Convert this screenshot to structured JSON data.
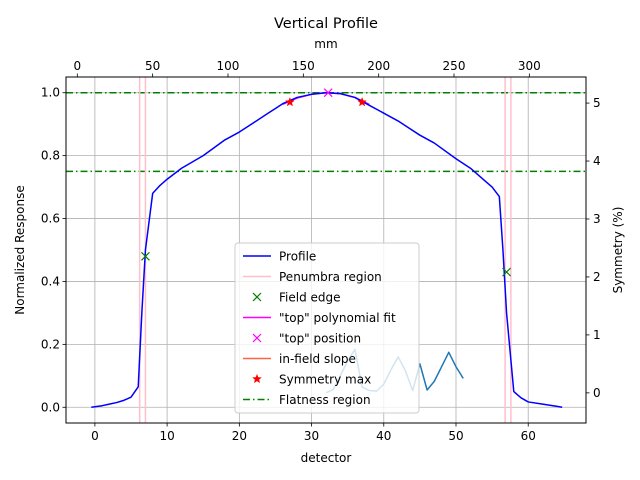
{
  "chart_data": {
    "type": "line",
    "title": "Vertical Profile",
    "xlabel": "detector",
    "ylabel": "Normalized Response",
    "x2label": "mm",
    "y2label": "Symmetry (%)",
    "xlim": [
      -4,
      68
    ],
    "ylim": [
      -0.05,
      1.05
    ],
    "x2lim": [
      -7.5,
      337.6
    ],
    "y2lim": [
      -0.52,
      5.45
    ],
    "xticks": [
      0,
      10,
      20,
      30,
      40,
      50,
      60
    ],
    "yticks": [
      0.0,
      0.2,
      0.4,
      0.6,
      0.8,
      1.0
    ],
    "x2ticks": [
      0,
      50,
      100,
      150,
      200,
      250,
      300
    ],
    "y2ticks": [
      0,
      1,
      2,
      3,
      4,
      5
    ],
    "grid": true,
    "legend_position": "lower-center",
    "colors": {
      "profile": "#0000ff",
      "penumbra": "#ffc0cb",
      "field_edge": "#008000",
      "top_fit": "#ff00ff",
      "top_position": "#ff00ff",
      "slope": "#ff6347",
      "symmetry_max": "#ff0000",
      "flatness": "#008000",
      "symmetry_curve": "#1f77b4"
    },
    "series": [
      {
        "name": "Profile",
        "kind": "line",
        "axis": "left",
        "x": [
          -0.5,
          1,
          2,
          3,
          4,
          5,
          6,
          6.5,
          7,
          8,
          9,
          10,
          12,
          15,
          18,
          20,
          22,
          24,
          25,
          26,
          28,
          30,
          32,
          34,
          36,
          38,
          40,
          42,
          43,
          45,
          47,
          50,
          52,
          54,
          55,
          56,
          56.5,
          57,
          58,
          59,
          60,
          62,
          64,
          64.7
        ],
        "y": [
          0.0,
          0.005,
          0.01,
          0.015,
          0.022,
          0.032,
          0.065,
          0.3,
          0.5,
          0.68,
          0.705,
          0.725,
          0.76,
          0.8,
          0.85,
          0.875,
          0.905,
          0.935,
          0.95,
          0.965,
          0.985,
          0.995,
          1.0,
          0.997,
          0.985,
          0.96,
          0.935,
          0.91,
          0.895,
          0.865,
          0.84,
          0.79,
          0.76,
          0.72,
          0.7,
          0.67,
          0.5,
          0.3,
          0.05,
          0.03,
          0.017,
          0.01,
          0.003,
          0.0
        ]
      },
      {
        "name": "Penumbra region",
        "kind": "vlines",
        "axis": "left",
        "x": [
          6.2,
          7.0,
          56.8,
          57.6
        ]
      },
      {
        "name": "Field edge",
        "kind": "markers",
        "marker": "x",
        "axis": "left",
        "x": [
          7.0,
          57.0
        ],
        "y": [
          0.48,
          0.43
        ]
      },
      {
        "name": "\"top\" polynomial fit",
        "kind": "line",
        "axis": "left",
        "x": [
          26,
          28,
          30,
          32,
          34,
          36,
          38
        ],
        "y": [
          0.963,
          0.983,
          0.995,
          1.0,
          0.997,
          0.985,
          0.963
        ]
      },
      {
        "name": "\"top\" position",
        "kind": "markers",
        "marker": "x",
        "axis": "left",
        "x": [
          32.3
        ],
        "y": [
          1.0
        ]
      },
      {
        "name": "in-field slope",
        "kind": "line",
        "axis": "left",
        "x": [],
        "y": []
      },
      {
        "name": "Symmetry max",
        "kind": "markers",
        "marker": "star",
        "axis": "left",
        "x": [
          27.0,
          37.0
        ],
        "y": [
          0.97,
          0.97
        ]
      },
      {
        "name": "Flatness region",
        "kind": "hlines",
        "axis": "left",
        "y": [
          1.0,
          0.75
        ]
      },
      {
        "name": "",
        "kind": "line",
        "axis": "right",
        "x": [
          32,
          33,
          34,
          35,
          36,
          37,
          38,
          39,
          40,
          41,
          42,
          43,
          44,
          45,
          46,
          47,
          48,
          49,
          50,
          51
        ],
        "y": [
          0.0,
          0.06,
          0.3,
          0.55,
          0.75,
          0.1,
          0.04,
          0.03,
          0.15,
          0.4,
          0.62,
          0.38,
          0.04,
          0.5,
          0.05,
          0.2,
          0.45,
          0.7,
          0.45,
          0.25
        ]
      }
    ]
  }
}
